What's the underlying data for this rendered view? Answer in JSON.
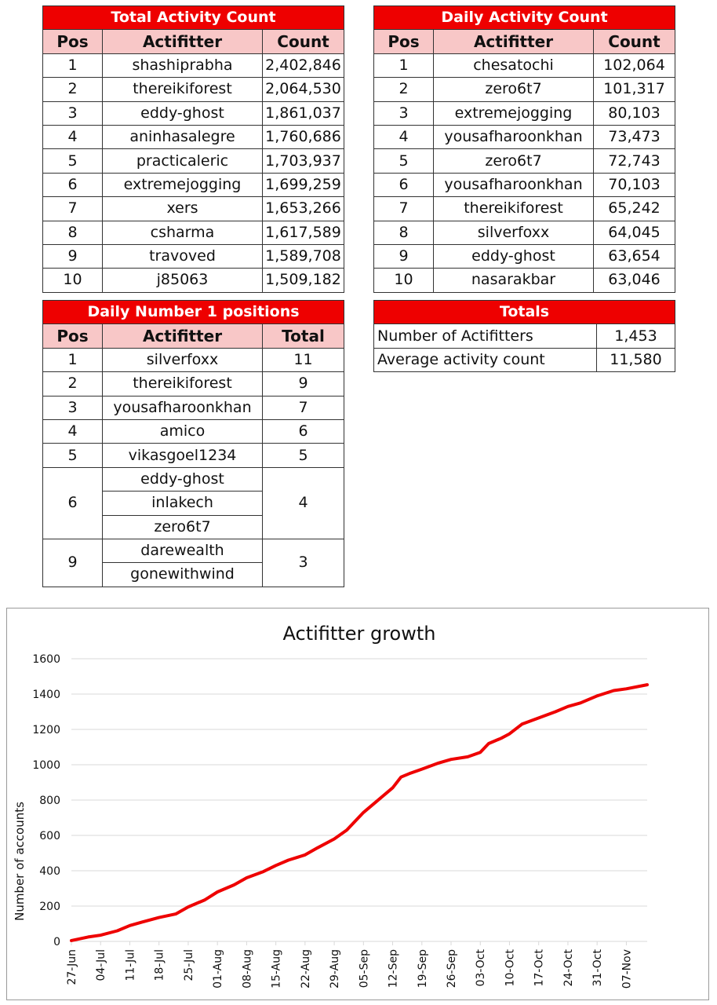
{
  "total_activity": {
    "title": "Total Activity Count",
    "headers": [
      "Pos",
      "Actifitter",
      "Count"
    ],
    "rows": [
      [
        "1",
        "shashiprabha",
        "2,402,846"
      ],
      [
        "2",
        "thereikiforest",
        "2,064,530"
      ],
      [
        "3",
        "eddy-ghost",
        "1,861,037"
      ],
      [
        "4",
        "aninhasalegre",
        "1,760,686"
      ],
      [
        "5",
        "practicaleric",
        "1,703,937"
      ],
      [
        "6",
        "extremejogging",
        "1,699,259"
      ],
      [
        "7",
        "xers",
        "1,653,266"
      ],
      [
        "8",
        "csharma",
        "1,617,589"
      ],
      [
        "9",
        "travoved",
        "1,589,708"
      ],
      [
        "10",
        "j85063",
        "1,509,182"
      ]
    ]
  },
  "daily_activity": {
    "title": "Daily Activity Count",
    "headers": [
      "Pos",
      "Actifitter",
      "Count"
    ],
    "rows": [
      [
        "1",
        "chesatochi",
        "102,064"
      ],
      [
        "2",
        "zero6t7",
        "101,317"
      ],
      [
        "3",
        "extremejogging",
        "80,103"
      ],
      [
        "4",
        "yousafharoonkhan",
        "73,473"
      ],
      [
        "5",
        "zero6t7",
        "72,743"
      ],
      [
        "6",
        "yousafharoonkhan",
        "70,103"
      ],
      [
        "7",
        "thereikiforest",
        "65,242"
      ],
      [
        "8",
        "silverfoxx",
        "64,045"
      ],
      [
        "9",
        "eddy-ghost",
        "63,654"
      ],
      [
        "10",
        "nasarakbar",
        "63,046"
      ]
    ]
  },
  "daily_number1": {
    "title": "Daily Number 1 positions",
    "headers": [
      "Pos",
      "Actifitter",
      "Total"
    ],
    "rows": [
      {
        "pos": "1",
        "names": [
          "silverfoxx"
        ],
        "total": "11"
      },
      {
        "pos": "2",
        "names": [
          "thereikiforest"
        ],
        "total": "9"
      },
      {
        "pos": "3",
        "names": [
          "yousafharoonkhan"
        ],
        "total": "7"
      },
      {
        "pos": "4",
        "names": [
          "amico"
        ],
        "total": "6"
      },
      {
        "pos": "5",
        "names": [
          "vikasgoel1234"
        ],
        "total": "5"
      },
      {
        "pos": "6",
        "names": [
          "eddy-ghost",
          "inlakech",
          "zero6t7"
        ],
        "total": "4"
      },
      {
        "pos": "9",
        "names": [
          "darewealth",
          "gonewithwind"
        ],
        "total": "3"
      }
    ]
  },
  "totals": {
    "title": "Totals",
    "rows": [
      [
        "Number of Actifitters",
        "1,453"
      ],
      [
        "Average activity count",
        "11,580"
      ]
    ]
  },
  "colors": {
    "title_bg": "#ee0000",
    "header_bg": "#f8c7c7",
    "line": "#ee0000"
  },
  "chart_data": {
    "type": "line",
    "title": "Actifitter growth",
    "xlabel": "",
    "ylabel": "Number of accounts",
    "ylim": [
      0,
      1600
    ],
    "yticks": [
      0,
      200,
      400,
      600,
      800,
      1000,
      1200,
      1400,
      1600
    ],
    "grid": true,
    "x_start": "2018-06-27",
    "xtick_labels": [
      "27-Jun",
      "04-Jul",
      "11-Jul",
      "18-Jul",
      "25-Jul",
      "01-Aug",
      "08-Aug",
      "15-Aug",
      "22-Aug",
      "29-Aug",
      "05-Sep",
      "12-Sep",
      "19-Sep",
      "26-Sep",
      "03-Oct",
      "10-Oct",
      "17-Oct",
      "24-Oct",
      "31-Oct",
      "07-Nov"
    ],
    "series": [
      {
        "name": "",
        "color": "#ee0000",
        "points": [
          [
            "27-Jun",
            5
          ],
          [
            "01-Jul",
            25
          ],
          [
            "04-Jul",
            35
          ],
          [
            "08-Jul",
            60
          ],
          [
            "11-Jul",
            90
          ],
          [
            "14-Jul",
            110
          ],
          [
            "18-Jul",
            135
          ],
          [
            "22-Jul",
            155
          ],
          [
            "25-Jul",
            195
          ],
          [
            "29-Jul",
            235
          ],
          [
            "01-Aug",
            280
          ],
          [
            "05-Aug",
            320
          ],
          [
            "08-Aug",
            360
          ],
          [
            "12-Aug",
            395
          ],
          [
            "15-Aug",
            430
          ],
          [
            "18-Aug",
            460
          ],
          [
            "22-Aug",
            490
          ],
          [
            "25-Aug",
            530
          ],
          [
            "29-Aug",
            580
          ],
          [
            "01-Sep",
            630
          ],
          [
            "05-Sep",
            730
          ],
          [
            "08-Sep",
            790
          ],
          [
            "12-Sep",
            870
          ],
          [
            "14-Sep",
            930
          ],
          [
            "16-Sep",
            950
          ],
          [
            "19-Sep",
            975
          ],
          [
            "23-Sep",
            1010
          ],
          [
            "26-Sep",
            1030
          ],
          [
            "30-Sep",
            1045
          ],
          [
            "03-Oct",
            1070
          ],
          [
            "05-Oct",
            1120
          ],
          [
            "08-Oct",
            1150
          ],
          [
            "10-Oct",
            1175
          ],
          [
            "13-Oct",
            1230
          ],
          [
            "17-Oct",
            1265
          ],
          [
            "21-Oct",
            1300
          ],
          [
            "24-Oct",
            1330
          ],
          [
            "27-Oct",
            1350
          ],
          [
            "31-Oct",
            1390
          ],
          [
            "04-Nov",
            1420
          ],
          [
            "07-Nov",
            1430
          ],
          [
            "12-Nov",
            1453
          ]
        ]
      }
    ]
  }
}
